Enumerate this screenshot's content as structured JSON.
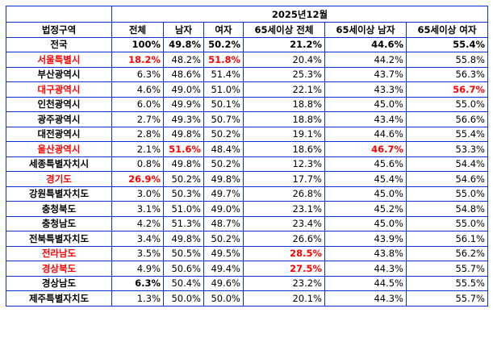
{
  "table": {
    "period": "2025년12월",
    "columns": [
      "법정구역",
      "전체",
      "남자",
      "여자",
      "65세이상 전체",
      "65세이상 남자",
      "65세이상 여자"
    ],
    "highlight_color": "#ff0000",
    "border_color": "#0a2fd6",
    "rows": [
      {
        "region": "전국",
        "region_style": "bold",
        "cells": [
          {
            "v": "100%",
            "s": "bold"
          },
          {
            "v": "49.8%",
            "s": "bold"
          },
          {
            "v": "50.2%",
            "s": "bold"
          },
          {
            "v": "21.2%",
            "s": "bold"
          },
          {
            "v": "44.6%",
            "s": "bold"
          },
          {
            "v": "55.4%",
            "s": "bold"
          }
        ]
      },
      {
        "region": "서울특별시",
        "region_style": "red",
        "cells": [
          {
            "v": "18.2%",
            "s": "red"
          },
          {
            "v": "48.2%",
            "s": ""
          },
          {
            "v": "51.8%",
            "s": "red"
          },
          {
            "v": "20.4%",
            "s": ""
          },
          {
            "v": "44.2%",
            "s": ""
          },
          {
            "v": "55.8%",
            "s": ""
          }
        ]
      },
      {
        "region": "부산광역시",
        "region_style": "",
        "cells": [
          {
            "v": "6.3%",
            "s": ""
          },
          {
            "v": "48.6%",
            "s": ""
          },
          {
            "v": "51.4%",
            "s": ""
          },
          {
            "v": "25.3%",
            "s": ""
          },
          {
            "v": "43.7%",
            "s": ""
          },
          {
            "v": "56.3%",
            "s": ""
          }
        ]
      },
      {
        "region": "대구광역시",
        "region_style": "red",
        "cells": [
          {
            "v": "4.6%",
            "s": ""
          },
          {
            "v": "49.0%",
            "s": ""
          },
          {
            "v": "51.0%",
            "s": ""
          },
          {
            "v": "22.1%",
            "s": ""
          },
          {
            "v": "43.3%",
            "s": ""
          },
          {
            "v": "56.7%",
            "s": "red"
          }
        ]
      },
      {
        "region": "인천광역시",
        "region_style": "",
        "cells": [
          {
            "v": "6.0%",
            "s": ""
          },
          {
            "v": "49.9%",
            "s": ""
          },
          {
            "v": "50.1%",
            "s": ""
          },
          {
            "v": "18.8%",
            "s": ""
          },
          {
            "v": "45.0%",
            "s": ""
          },
          {
            "v": "55.0%",
            "s": ""
          }
        ]
      },
      {
        "region": "광주광역시",
        "region_style": "",
        "cells": [
          {
            "v": "2.7%",
            "s": ""
          },
          {
            "v": "49.3%",
            "s": ""
          },
          {
            "v": "50.7%",
            "s": ""
          },
          {
            "v": "18.8%",
            "s": ""
          },
          {
            "v": "43.4%",
            "s": ""
          },
          {
            "v": "56.6%",
            "s": ""
          }
        ]
      },
      {
        "region": "대전광역시",
        "region_style": "",
        "cells": [
          {
            "v": "2.8%",
            "s": ""
          },
          {
            "v": "49.8%",
            "s": ""
          },
          {
            "v": "50.2%",
            "s": ""
          },
          {
            "v": "19.1%",
            "s": ""
          },
          {
            "v": "44.6%",
            "s": ""
          },
          {
            "v": "55.4%",
            "s": ""
          }
        ]
      },
      {
        "region": "울산광역시",
        "region_style": "red",
        "cells": [
          {
            "v": "2.1%",
            "s": ""
          },
          {
            "v": "51.6%",
            "s": "red"
          },
          {
            "v": "48.4%",
            "s": ""
          },
          {
            "v": "18.6%",
            "s": ""
          },
          {
            "v": "46.7%",
            "s": "red"
          },
          {
            "v": "53.3%",
            "s": ""
          }
        ]
      },
      {
        "region": "세종특별자치시",
        "region_style": "",
        "cells": [
          {
            "v": "0.8%",
            "s": ""
          },
          {
            "v": "49.8%",
            "s": ""
          },
          {
            "v": "50.2%",
            "s": ""
          },
          {
            "v": "12.3%",
            "s": ""
          },
          {
            "v": "45.6%",
            "s": ""
          },
          {
            "v": "54.4%",
            "s": ""
          }
        ]
      },
      {
        "region": "경기도",
        "region_style": "red",
        "cells": [
          {
            "v": "26.9%",
            "s": "red"
          },
          {
            "v": "50.2%",
            "s": ""
          },
          {
            "v": "49.8%",
            "s": ""
          },
          {
            "v": "17.7%",
            "s": ""
          },
          {
            "v": "45.4%",
            "s": ""
          },
          {
            "v": "54.6%",
            "s": ""
          }
        ]
      },
      {
        "region": "강원특별자치도",
        "region_style": "",
        "cells": [
          {
            "v": "3.0%",
            "s": ""
          },
          {
            "v": "50.3%",
            "s": ""
          },
          {
            "v": "49.7%",
            "s": ""
          },
          {
            "v": "26.8%",
            "s": ""
          },
          {
            "v": "45.0%",
            "s": ""
          },
          {
            "v": "55.0%",
            "s": ""
          }
        ]
      },
      {
        "region": "충청북도",
        "region_style": "",
        "cells": [
          {
            "v": "3.1%",
            "s": ""
          },
          {
            "v": "51.0%",
            "s": ""
          },
          {
            "v": "49.0%",
            "s": ""
          },
          {
            "v": "23.1%",
            "s": ""
          },
          {
            "v": "45.2%",
            "s": ""
          },
          {
            "v": "54.8%",
            "s": ""
          }
        ]
      },
      {
        "region": "충청남도",
        "region_style": "",
        "cells": [
          {
            "v": "4.2%",
            "s": ""
          },
          {
            "v": "51.3%",
            "s": ""
          },
          {
            "v": "48.7%",
            "s": ""
          },
          {
            "v": "23.4%",
            "s": ""
          },
          {
            "v": "45.0%",
            "s": ""
          },
          {
            "v": "55.0%",
            "s": ""
          }
        ]
      },
      {
        "region": "전북특별자치도",
        "region_style": "",
        "cells": [
          {
            "v": "3.4%",
            "s": ""
          },
          {
            "v": "49.8%",
            "s": ""
          },
          {
            "v": "50.2%",
            "s": ""
          },
          {
            "v": "26.6%",
            "s": ""
          },
          {
            "v": "43.9%",
            "s": ""
          },
          {
            "v": "56.1%",
            "s": ""
          }
        ]
      },
      {
        "region": "전라남도",
        "region_style": "red",
        "cells": [
          {
            "v": "3.5%",
            "s": ""
          },
          {
            "v": "50.5%",
            "s": ""
          },
          {
            "v": "49.5%",
            "s": ""
          },
          {
            "v": "28.5%",
            "s": "red"
          },
          {
            "v": "43.8%",
            "s": ""
          },
          {
            "v": "56.2%",
            "s": ""
          }
        ]
      },
      {
        "region": "경상북도",
        "region_style": "red",
        "cells": [
          {
            "v": "4.9%",
            "s": ""
          },
          {
            "v": "50.6%",
            "s": ""
          },
          {
            "v": "49.4%",
            "s": ""
          },
          {
            "v": "27.5%",
            "s": "red"
          },
          {
            "v": "44.3%",
            "s": ""
          },
          {
            "v": "55.7%",
            "s": ""
          }
        ]
      },
      {
        "region": "경상남도",
        "region_style": "",
        "cells": [
          {
            "v": "6.3%",
            "s": "bold"
          },
          {
            "v": "50.4%",
            "s": ""
          },
          {
            "v": "49.6%",
            "s": ""
          },
          {
            "v": "23.2%",
            "s": ""
          },
          {
            "v": "44.5%",
            "s": ""
          },
          {
            "v": "55.5%",
            "s": ""
          }
        ]
      },
      {
        "region": "제주특별자치도",
        "region_style": "",
        "cells": [
          {
            "v": "1.3%",
            "s": ""
          },
          {
            "v": "50.0%",
            "s": ""
          },
          {
            "v": "50.0%",
            "s": ""
          },
          {
            "v": "20.1%",
            "s": ""
          },
          {
            "v": "44.3%",
            "s": ""
          },
          {
            "v": "55.7%",
            "s": ""
          }
        ]
      }
    ]
  }
}
